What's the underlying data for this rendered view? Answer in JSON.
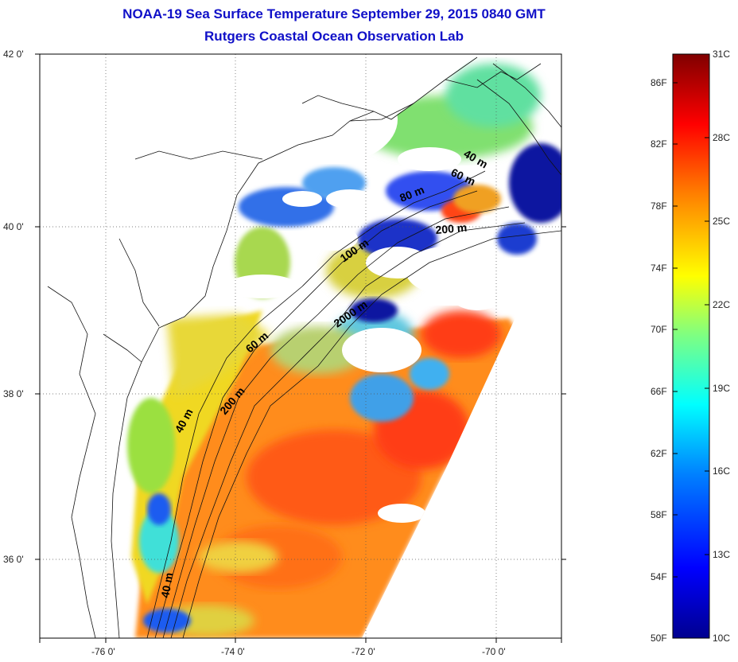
{
  "title": "NOAA-19 Sea Surface Temperature September 29, 2015 0840 GMT",
  "subtitle": "Rutgers Coastal Ocean Observation Lab",
  "lat_ticks": [
    "42 0'",
    "40 0'",
    "38 0'",
    "36 0'"
  ],
  "lon_ticks": [
    "-76 0'",
    "-74 0'",
    "-72 0'",
    "-70 0'"
  ],
  "contour_labels": [
    "40 m",
    "60 m",
    "80 m",
    "200 m",
    "100 m",
    "2000 m",
    "60 m",
    "200 m",
    "40 m",
    "40 m"
  ],
  "colorbar": {
    "celsius": [
      "31C",
      "28C",
      "25C",
      "22C",
      "19C",
      "16C",
      "13C",
      "10C"
    ],
    "fahrenheit": [
      "86F",
      "82F",
      "78F",
      "74F",
      "70F",
      "66F",
      "62F",
      "58F",
      "54F",
      "50F"
    ],
    "min_c": 10,
    "max_c": 31,
    "colors": [
      "#00008f",
      "#0000ff",
      "#0080ff",
      "#00ffff",
      "#80ff80",
      "#ffff00",
      "#ff8000",
      "#ff0000",
      "#800000"
    ]
  },
  "map": {
    "lat_range": [
      35,
      42
    ],
    "lon_range": [
      -77,
      -69
    ],
    "palette": {
      "warm": "#ff8c1a",
      "hot": "#ff3d12",
      "yellow": "#f0d820",
      "green": "#9be040",
      "cyan": "#40e0d8",
      "blue": "#1a5cf0",
      "navy": "#0a14a0"
    }
  }
}
